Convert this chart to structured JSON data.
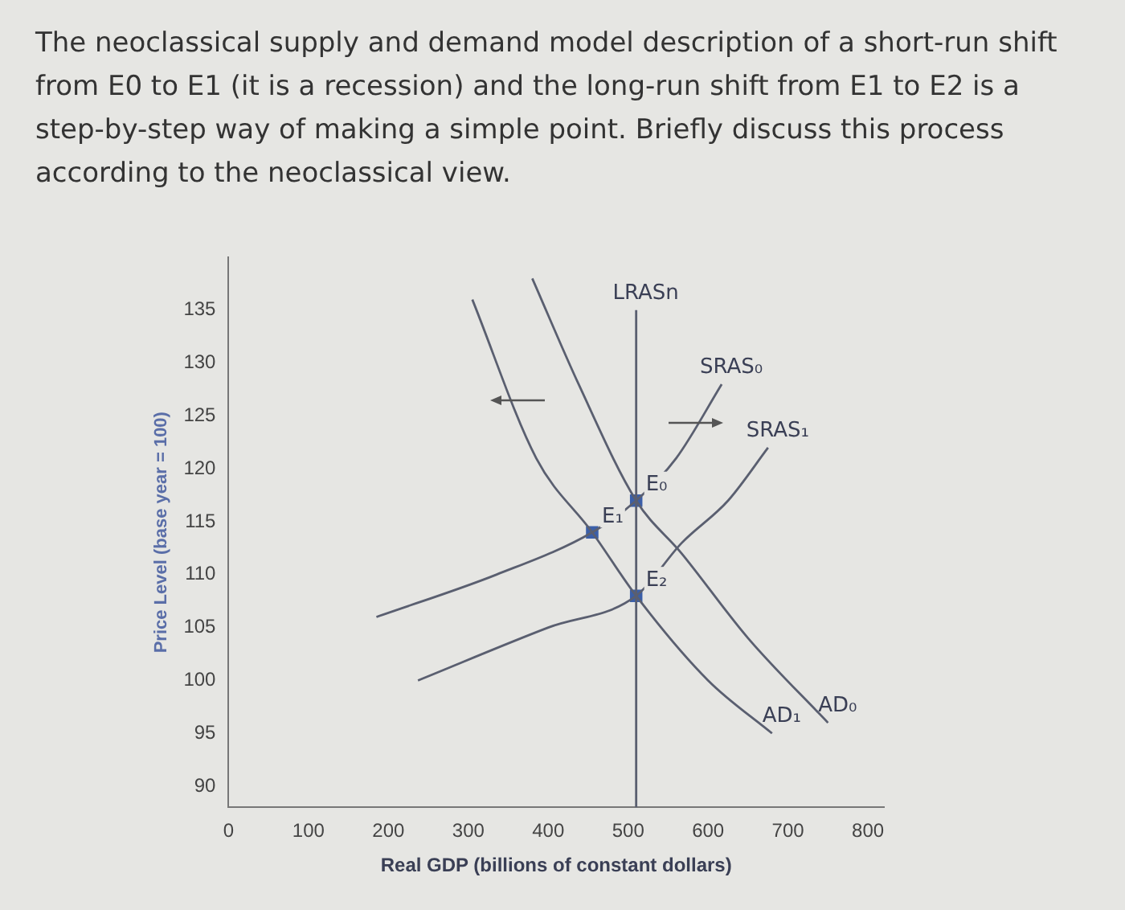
{
  "chart_data": {
    "type": "line",
    "title": "The neoclassical supply and demand model description of a short-run shift from E0 to E1 (it is a recession) and the long-run shift from E1 to E2 is a step-by-step way of making a simple point. Briefly discuss this process according to the neoclassical view.",
    "xlabel": "Real GDP (billions of constant dollars)",
    "ylabel": "Price Level (base year = 100)",
    "xlim": [
      0,
      820
    ],
    "xticks": [
      0,
      100,
      200,
      300,
      400,
      500,
      600,
      700,
      800
    ],
    "ylim": [
      88,
      140
    ],
    "yticks": [
      90,
      95,
      100,
      105,
      110,
      115,
      120,
      125,
      130,
      135
    ],
    "grid": false,
    "legend": false,
    "marker": "none",
    "series": [
      {
        "name": "LRASn",
        "color": "#5a5f70",
        "x": [
          510,
          510
        ],
        "values": [
          88,
          135
        ]
      },
      {
        "name": "AD₀",
        "color": "#5a5f70",
        "x": [
          380,
          438,
          510,
          567,
          650,
          750
        ],
        "values": [
          138,
          128,
          117,
          112,
          104,
          96
        ]
      },
      {
        "name": "AD₁",
        "color": "#5a5f70",
        "x": [
          305,
          385,
          455,
          510,
          600,
          680
        ],
        "values": [
          136,
          121,
          114,
          108,
          100,
          95
        ]
      },
      {
        "name": "SRAS₀",
        "color": "#5a5f70",
        "x": [
          185,
          335,
          455,
          510,
          560,
          617
        ],
        "values": [
          106,
          110,
          114,
          117,
          121,
          128
        ]
      },
      {
        "name": "SRAS₁",
        "color": "#5a5f70",
        "x": [
          237,
          400,
          510,
          567,
          625,
          675
        ],
        "values": [
          100,
          105,
          108,
          113,
          117,
          122
        ]
      },
      {
        "type": "scatter",
        "marker": "square",
        "color": "#3b5fa8",
        "x": [
          510,
          455,
          510
        ],
        "values": [
          117,
          114,
          108
        ],
        "value_labels": [
          "E₀",
          "E₁",
          "E₂"
        ]
      }
    ]
  }
}
